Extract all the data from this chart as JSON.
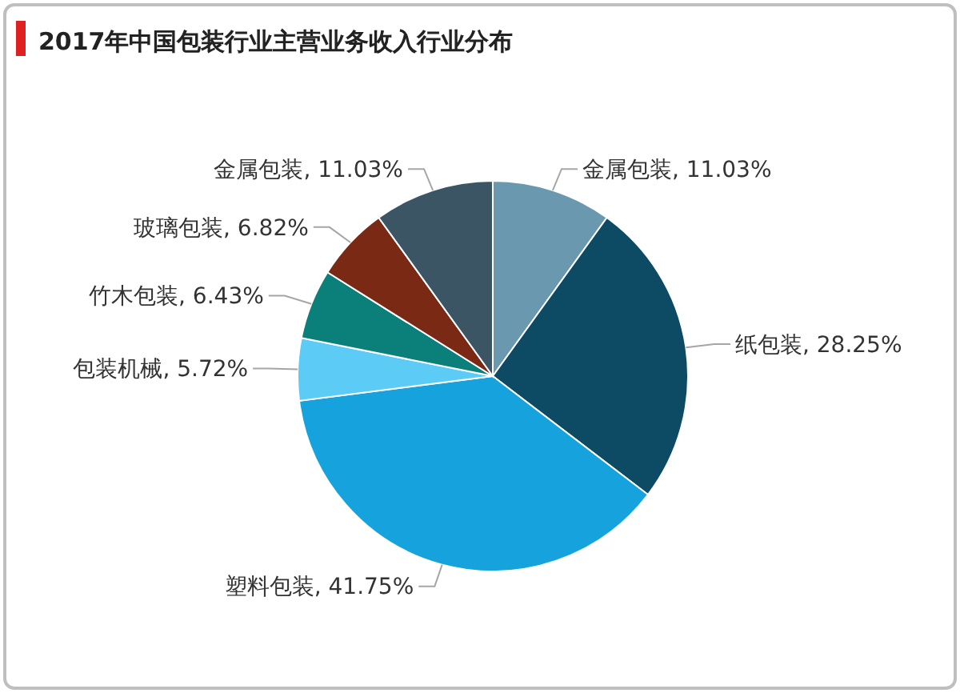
{
  "chart_data": {
    "type": "pie",
    "title": "2017年中国包装行业主营业务收入行业分布",
    "categories": [
      "金属包装",
      "纸包装",
      "塑料包装",
      "包装机械",
      "竹木包装",
      "玻璃包装",
      "金属包装"
    ],
    "values": [
      11.03,
      28.25,
      41.75,
      5.72,
      6.43,
      6.82,
      11.03
    ],
    "value_labels": [
      "11.03%",
      "28.25%",
      "41.75%",
      "5.72%",
      "6.43%",
      "6.82%",
      "11.03%"
    ],
    "colors": [
      "#6a98ae",
      "#0d4a63",
      "#16a3dd",
      "#5ccbf5",
      "#0b7f7a",
      "#7a2a14",
      "#3b5564"
    ]
  }
}
